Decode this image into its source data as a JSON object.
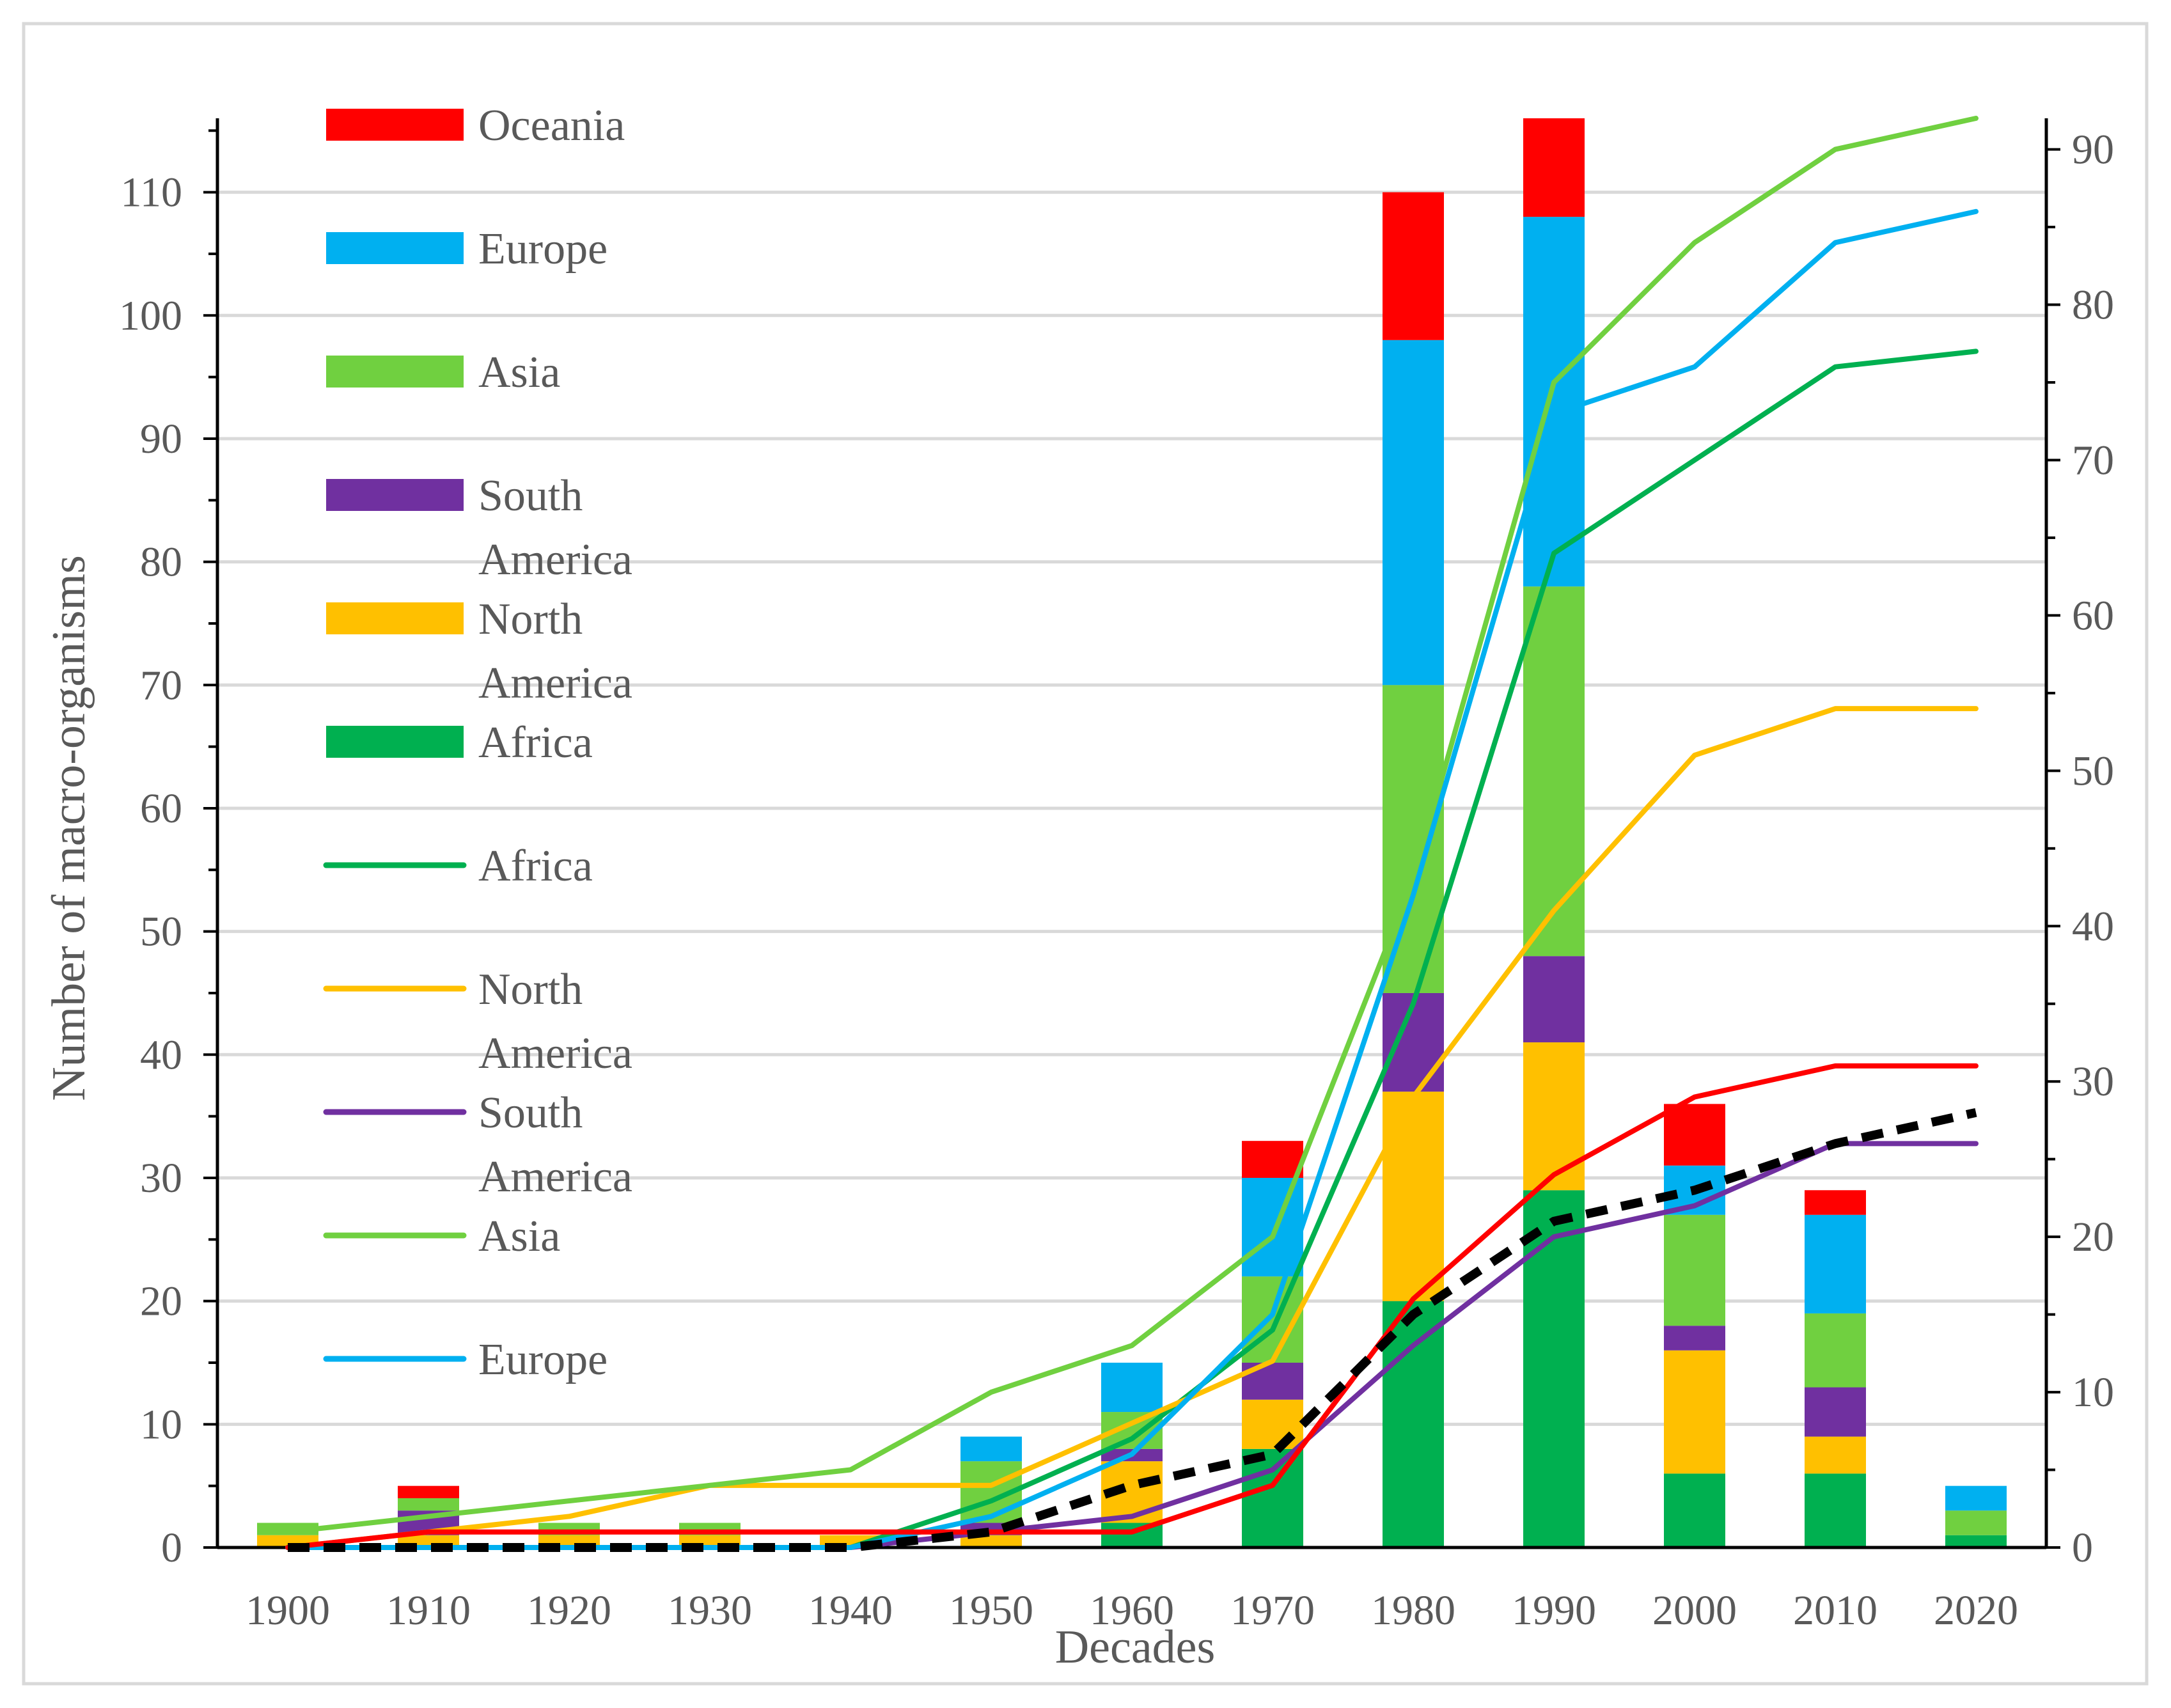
{
  "chart_data": {
    "type": "bar",
    "title": "",
    "xlabel": "Decades",
    "ylabel": "Number of macro-organisms",
    "categories": [
      "1900",
      "1910",
      "1920",
      "1930",
      "1940",
      "1950",
      "1960",
      "1970",
      "1980",
      "1990",
      "2000",
      "2010",
      "2020"
    ],
    "ylim": [
      0,
      116
    ],
    "yticks": [
      0,
      10,
      20,
      30,
      40,
      50,
      60,
      70,
      80,
      90,
      100,
      110
    ],
    "y2lim": [
      0,
      92
    ],
    "y2ticks": [
      0,
      10,
      20,
      30,
      40,
      50,
      60,
      70,
      80,
      90
    ],
    "grid": true,
    "colors": {
      "Africa": "#00b050",
      "North America": "#ffc000",
      "South America": "#7030a0",
      "Asia": "#70d040",
      "Europe": "#00b0f0",
      "Oceania": "#ff0000",
      "total": "#000000"
    },
    "bar_series": [
      {
        "name": "Africa",
        "values": [
          0,
          0,
          0,
          0,
          0,
          0,
          2,
          8,
          20,
          29,
          6,
          6,
          1
        ]
      },
      {
        "name": "North America",
        "values": [
          1,
          1,
          1,
          1,
          1,
          1,
          5,
          4,
          17,
          12,
          10,
          3,
          0
        ]
      },
      {
        "name": "South America",
        "values": [
          0,
          2,
          0,
          0,
          0,
          1,
          1,
          3,
          8,
          7,
          2,
          4,
          0
        ]
      },
      {
        "name": "Asia",
        "values": [
          1,
          1,
          1,
          1,
          0,
          5,
          3,
          7,
          25,
          30,
          9,
          6,
          2
        ]
      },
      {
        "name": "Europe",
        "values": [
          0,
          0,
          0,
          0,
          0,
          2,
          4,
          8,
          28,
          30,
          4,
          8,
          2
        ]
      },
      {
        "name": "Oceania",
        "values": [
          0,
          1,
          0,
          0,
          0,
          0,
          0,
          3,
          12,
          8,
          5,
          2,
          0
        ]
      }
    ],
    "line_series": [
      {
        "name": "Africa",
        "axis": "right",
        "values": [
          0,
          0,
          0,
          0,
          0,
          3,
          7,
          14,
          35,
          64,
          70,
          76,
          77
        ]
      },
      {
        "name": "North America",
        "axis": "right",
        "values": [
          0,
          1,
          2,
          4,
          4,
          4,
          8,
          12,
          29,
          41,
          51,
          54,
          54
        ]
      },
      {
        "name": "South America",
        "axis": "right",
        "values": [
          0,
          0,
          0,
          0,
          0,
          1,
          2,
          5,
          13,
          20,
          22,
          26,
          26
        ]
      },
      {
        "name": "Asia",
        "axis": "right",
        "values": [
          1,
          2,
          3,
          4,
          5,
          10,
          13,
          20,
          43,
          75,
          84,
          90,
          92
        ]
      },
      {
        "name": "Europe",
        "axis": "right",
        "values": [
          0,
          0,
          0,
          0,
          0,
          2,
          6,
          15,
          42,
          73,
          76,
          84,
          86
        ]
      },
      {
        "name": "Oceania",
        "axis": "right",
        "values": [
          0,
          1,
          1,
          1,
          1,
          1,
          1,
          4,
          16,
          24,
          29,
          31,
          31
        ]
      },
      {
        "name": "Total",
        "axis": "right",
        "dashed": true,
        "values": [
          0,
          0,
          0,
          0,
          0,
          1,
          4,
          6,
          15,
          21,
          23,
          26,
          28
        ]
      }
    ],
    "legend": {
      "placement": "top-left inside plot",
      "bar_entries": [
        {
          "series": "Oceania",
          "label_lines": [
            "Oceania"
          ]
        },
        {
          "series": "Europe",
          "label_lines": [
            "Europe"
          ]
        },
        {
          "series": "Asia",
          "label_lines": [
            "Asia"
          ]
        },
        {
          "series": "South America",
          "label_lines": [
            "South",
            "America"
          ]
        },
        {
          "series": "North America",
          "label_lines": [
            "North",
            "America"
          ]
        },
        {
          "series": "Africa",
          "label_lines": [
            "Africa"
          ]
        }
      ],
      "line_entries": [
        {
          "series": "Africa",
          "label_lines": [
            "Africa"
          ]
        },
        {
          "series": "North America",
          "label_lines": [
            "North",
            "America"
          ]
        },
        {
          "series": "South America",
          "label_lines": [
            "South",
            "America"
          ]
        },
        {
          "series": "Asia",
          "label_lines": [
            "Asia"
          ]
        },
        {
          "series": "Europe",
          "label_lines": [
            "Europe"
          ]
        }
      ]
    }
  }
}
